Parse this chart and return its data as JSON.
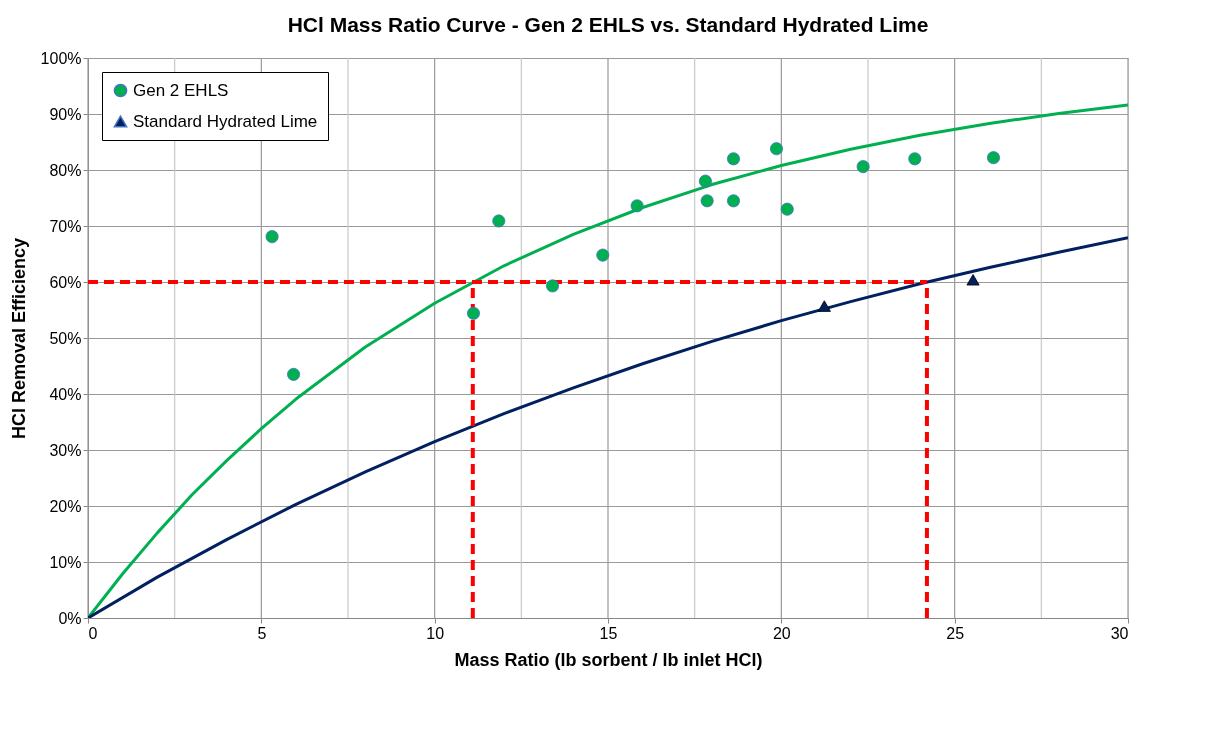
{
  "chart_data": {
    "type": "scatter",
    "title": "HCl Mass Ratio Curve - Gen 2 EHLS vs. Standard Hydrated Lime",
    "xlabel": "Mass Ratio (lb sorbent / lb inlet HCl)",
    "ylabel": "HCl Removal Efficiency",
    "xlim": [
      0,
      30
    ],
    "xticks": [
      0,
      5,
      10,
      15,
      20,
      25,
      30
    ],
    "ylim": [
      0,
      100
    ],
    "yticks": [
      {
        "value": 0,
        "label": "0%"
      },
      {
        "value": 10,
        "label": "10%"
      },
      {
        "value": 20,
        "label": "20%"
      },
      {
        "value": 30,
        "label": "30%"
      },
      {
        "value": 40,
        "label": "40%"
      },
      {
        "value": 50,
        "label": "50%"
      },
      {
        "value": 60,
        "label": "60%"
      },
      {
        "value": 70,
        "label": "70%"
      },
      {
        "value": 80,
        "label": "80%"
      },
      {
        "value": 90,
        "label": "90%"
      },
      {
        "value": 100,
        "label": "100%"
      }
    ],
    "grid": true,
    "legend": "top left",
    "series": [
      {
        "type": "line",
        "color": "#00b050",
        "line_style": "solid",
        "marker": "none",
        "x": [
          0,
          1,
          2,
          3,
          4,
          5,
          6,
          8,
          10,
          12,
          14,
          16,
          18,
          20,
          22,
          24,
          26,
          28,
          30
        ],
        "values": [
          0,
          7.9,
          15.2,
          22.0,
          28.1,
          33.8,
          39.1,
          48.4,
          56.2,
          62.9,
          68.5,
          73.3,
          77.4,
          80.8,
          83.7,
          86.2,
          88.3,
          90.1,
          91.6
        ]
      },
      {
        "type": "line",
        "color": "#002060",
        "line_style": "solid",
        "marker": "none",
        "x": [
          0,
          2,
          4,
          6,
          8,
          10,
          12,
          14,
          16,
          18,
          20,
          22,
          24,
          26,
          28,
          30
        ],
        "values": [
          0,
          7.3,
          14.0,
          20.3,
          26.1,
          31.5,
          36.5,
          41.1,
          45.4,
          49.4,
          53.1,
          56.5,
          59.7,
          62.6,
          65.3,
          67.9
        ]
      },
      {
        "type": "line",
        "color": "#ff0000",
        "line_style": "dashed",
        "marker": "none",
        "x": [
          0,
          24.2
        ],
        "values": [
          60,
          60
        ]
      },
      {
        "type": "line",
        "color": "#ff0000",
        "line_style": "dashed",
        "marker": "none",
        "x": [
          11.1,
          11.1
        ],
        "values": [
          0,
          60
        ]
      },
      {
        "type": "line",
        "color": "#ff0000",
        "line_style": "dashed",
        "marker": "none",
        "x": [
          24.2,
          24.2
        ],
        "values": [
          0,
          60
        ]
      },
      {
        "name": "Gen 2 EHLS",
        "color": "#00b050",
        "marker": "circle",
        "x": [
          5.31,
          5.93,
          11.12,
          11.85,
          13.4,
          14.85,
          15.84,
          17.81,
          17.86,
          18.62,
          18.62,
          19.86,
          20.17,
          22.36,
          23.85,
          26.12
        ],
        "values": [
          68.1,
          43.5,
          54.4,
          70.9,
          59.3,
          64.8,
          73.6,
          78.0,
          74.5,
          82.0,
          74.5,
          83.8,
          73.0,
          80.6,
          82.0,
          82.2
        ]
      },
      {
        "name": "Standard Hydrated Lime",
        "color": "#002060",
        "marker": "triangle",
        "x": [
          21.24,
          25.53
        ],
        "values": [
          55.7,
          60.4
        ]
      }
    ]
  }
}
